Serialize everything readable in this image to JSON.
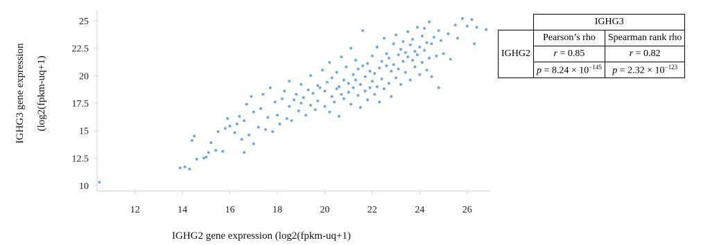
{
  "chart_data": {
    "type": "scatter",
    "xlabel": "IGHG2 gene expression (log2(fpkm-uq+1)",
    "ylabel_line1": "IGHG3 gene expression",
    "ylabel_line2": "(log2(fpkm-uq+1)",
    "xlim": [
      10.4,
      27.0
    ],
    "ylim": [
      9.5,
      26
    ],
    "x_ticks": [
      12,
      14,
      16,
      18,
      20,
      22,
      24,
      26
    ],
    "y_ticks": [
      10,
      12.5,
      15,
      17.5,
      20,
      22.5,
      25
    ],
    "y_tick_labels": [
      "10",
      "12.5",
      "15",
      "17.5",
      "20",
      "22.5",
      "25"
    ],
    "grid": false,
    "point_color": "#6fa8dc",
    "series": [
      {
        "points": [
          [
            10.5,
            10.3
          ],
          [
            13.9,
            11.6
          ],
          [
            14.1,
            11.7
          ],
          [
            14.3,
            11.5
          ],
          [
            14.4,
            14.1
          ],
          [
            14.5,
            14.5
          ],
          [
            14.6,
            12.4
          ],
          [
            14.9,
            12.5
          ],
          [
            15.0,
            12.6
          ],
          [
            15.1,
            13.0
          ],
          [
            15.2,
            13.9
          ],
          [
            15.4,
            13.2
          ],
          [
            15.5,
            14.9
          ],
          [
            15.7,
            13.1
          ],
          [
            15.8,
            15.2
          ],
          [
            15.9,
            16.1
          ],
          [
            16.0,
            15.4
          ],
          [
            16.2,
            14.8
          ],
          [
            16.3,
            15.6
          ],
          [
            16.4,
            16.3
          ],
          [
            16.5,
            14.2
          ],
          [
            16.6,
            13.0
          ],
          [
            16.6,
            15.9
          ],
          [
            16.7,
            17.4
          ],
          [
            16.8,
            14.6
          ],
          [
            16.9,
            18.1
          ],
          [
            17.0,
            13.8
          ],
          [
            17.0,
            16.7
          ],
          [
            17.2,
            15.3
          ],
          [
            17.3,
            17.0
          ],
          [
            17.4,
            18.3
          ],
          [
            17.5,
            15.1
          ],
          [
            17.6,
            16.2
          ],
          [
            17.7,
            18.9
          ],
          [
            17.8,
            14.9
          ],
          [
            17.9,
            17.6
          ],
          [
            18.0,
            16.4
          ],
          [
            18.1,
            15.6
          ],
          [
            18.2,
            17.9
          ],
          [
            18.3,
            18.6
          ],
          [
            18.4,
            16.1
          ],
          [
            18.5,
            17.2
          ],
          [
            18.5,
            19.5
          ],
          [
            18.6,
            15.9
          ],
          [
            18.7,
            17.8
          ],
          [
            18.8,
            18.3
          ],
          [
            18.9,
            16.8
          ],
          [
            19.0,
            17.5
          ],
          [
            19.0,
            19.2
          ],
          [
            19.1,
            18.0
          ],
          [
            19.2,
            16.4
          ],
          [
            19.3,
            18.7
          ],
          [
            19.4,
            17.3
          ],
          [
            19.4,
            20.0
          ],
          [
            19.5,
            18.4
          ],
          [
            19.6,
            16.9
          ],
          [
            19.7,
            19.1
          ],
          [
            19.7,
            17.7
          ],
          [
            19.8,
            18.9
          ],
          [
            19.9,
            20.5
          ],
          [
            20.0,
            17.2
          ],
          [
            20.0,
            18.6
          ],
          [
            20.1,
            19.4
          ],
          [
            20.2,
            16.7
          ],
          [
            20.2,
            21.2
          ],
          [
            20.3,
            18.1
          ],
          [
            20.3,
            19.8
          ],
          [
            20.4,
            17.6
          ],
          [
            20.5,
            20.3
          ],
          [
            20.5,
            18.8
          ],
          [
            20.6,
            16.3
          ],
          [
            20.6,
            19.0
          ],
          [
            20.7,
            21.7
          ],
          [
            20.7,
            18.3
          ],
          [
            20.8,
            19.6
          ],
          [
            20.8,
            17.9
          ],
          [
            20.9,
            20.8
          ],
          [
            21.0,
            18.5
          ],
          [
            21.0,
            19.3
          ],
          [
            21.1,
            22.5
          ],
          [
            21.1,
            17.4
          ],
          [
            21.2,
            20.1
          ],
          [
            21.2,
            18.9
          ],
          [
            21.3,
            19.6
          ],
          [
            21.3,
            21.4
          ],
          [
            21.4,
            18.2
          ],
          [
            21.4,
            20.6
          ],
          [
            21.5,
            17.1
          ],
          [
            21.5,
            19.2
          ],
          [
            21.6,
            24.1
          ],
          [
            21.6,
            20.9
          ],
          [
            21.7,
            18.6
          ],
          [
            21.7,
            19.9
          ],
          [
            21.8,
            21.1
          ],
          [
            21.8,
            17.8
          ],
          [
            21.9,
            20.4
          ],
          [
            21.9,
            18.9
          ],
          [
            22.0,
            19.5
          ],
          [
            22.0,
            21.8
          ],
          [
            22.1,
            18.3
          ],
          [
            22.1,
            20.2
          ],
          [
            22.2,
            22.6
          ],
          [
            22.2,
            19.0
          ],
          [
            22.3,
            20.7
          ],
          [
            22.3,
            17.6
          ],
          [
            22.4,
            21.3
          ],
          [
            22.4,
            19.7
          ],
          [
            22.5,
            23.4
          ],
          [
            22.5,
            18.8
          ],
          [
            22.6,
            20.9
          ],
          [
            22.6,
            22.0
          ],
          [
            22.7,
            19.3
          ],
          [
            22.7,
            21.6
          ],
          [
            22.8,
            18.1
          ],
          [
            22.8,
            20.4
          ],
          [
            22.9,
            22.9
          ],
          [
            22.9,
            21.0
          ],
          [
            23.0,
            19.8
          ],
          [
            23.0,
            23.7
          ],
          [
            23.1,
            21.9
          ],
          [
            23.1,
            20.6
          ],
          [
            23.2,
            22.4
          ],
          [
            23.2,
            19.2
          ],
          [
            23.3,
            21.3
          ],
          [
            23.3,
            23.1
          ],
          [
            23.4,
            22.1
          ],
          [
            23.4,
            20.3
          ],
          [
            23.5,
            21.7
          ],
          [
            23.5,
            24.0
          ],
          [
            23.6,
            22.8
          ],
          [
            23.6,
            19.6
          ],
          [
            23.7,
            21.4
          ],
          [
            23.7,
            23.3
          ],
          [
            23.8,
            22.2
          ],
          [
            23.8,
            20.8
          ],
          [
            23.9,
            24.4
          ],
          [
            23.9,
            21.9
          ],
          [
            24.0,
            22.6
          ],
          [
            24.0,
            20.1
          ],
          [
            24.1,
            23.6
          ],
          [
            24.1,
            21.2
          ],
          [
            24.2,
            24.3
          ],
          [
            24.2,
            22.3
          ],
          [
            24.3,
            20.5
          ],
          [
            24.3,
            23.0
          ],
          [
            24.4,
            21.6
          ],
          [
            24.4,
            24.9
          ],
          [
            24.5,
            22.9
          ],
          [
            24.5,
            19.9
          ],
          [
            24.6,
            23.5
          ],
          [
            24.7,
            21.8
          ],
          [
            24.8,
            24.1
          ],
          [
            24.8,
            18.9
          ],
          [
            24.9,
            23.2
          ],
          [
            25.0,
            22.0
          ],
          [
            25.2,
            23.8
          ],
          [
            25.3,
            21.5
          ],
          [
            25.5,
            24.6
          ],
          [
            25.6,
            23.4
          ],
          [
            25.8,
            25.2
          ],
          [
            26.0,
            24.5
          ],
          [
            26.2,
            25.1
          ],
          [
            26.3,
            22.9
          ],
          [
            26.4,
            24.4
          ],
          [
            26.8,
            24.2
          ]
        ]
      }
    ]
  },
  "table": {
    "top_header": "IGHG3",
    "row_header": "IGHG2",
    "col1_header": "Pearson’s rho",
    "col2_header": "Spearman rank rho",
    "r_label": "r",
    "r_value": " = 0.85",
    "r2_value": " = 0.82",
    "p_label": "p",
    "p1_value": " = 8.24 × 10",
    "p1_exp": "−145",
    "p2_value": " = 2.32 × 10",
    "p2_exp": "−123"
  }
}
